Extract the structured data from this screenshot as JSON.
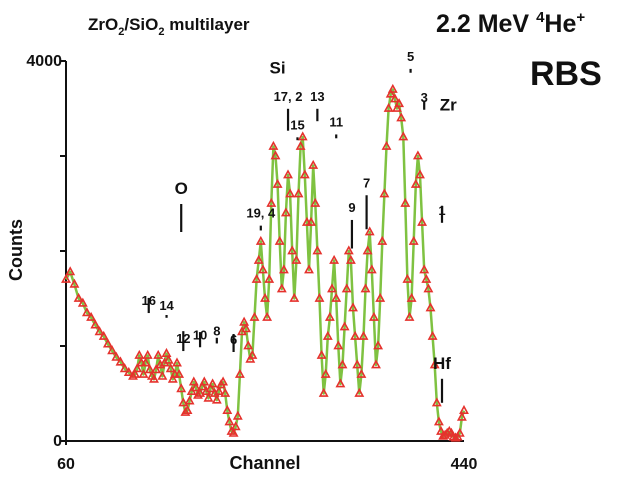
{
  "colors": {
    "marker": "#e5322d",
    "line": "#7fc241",
    "text": "#111111",
    "axis": "#111111"
  },
  "chart_data": {
    "type": "scatter",
    "title": "ZrO2/SiO2 multilayer",
    "title_parts": {
      "base1": "ZrO",
      "sub1": "2",
      "mid": "/SiO",
      "sub2": "2",
      "rest": " multilayer"
    },
    "beam_label": {
      "prefix": "2.2 MeV ",
      "sup": "4",
      "ion": "He",
      "charge": "+"
    },
    "technique": "RBS",
    "xlabel": "Channel",
    "ylabel": "Counts",
    "xlim": [
      60,
      440
    ],
    "ylim": [
      0,
      4000
    ],
    "x_ticks": [
      "60",
      "440"
    ],
    "y_ticks": [
      "0",
      "4000"
    ],
    "grid": false,
    "legend": "none",
    "element_labels": [
      {
        "text": "O",
        "x": 170,
        "y": 2600
      },
      {
        "text": "Si",
        "x": 262,
        "y": 3870
      },
      {
        "text": "Zr",
        "x": 425,
        "y": 3480
      },
      {
        "text": "Hf",
        "x": 419,
        "y": 760
      }
    ],
    "layer_markers": [
      {
        "label": "1",
        "x": 419,
        "top": 2360,
        "bottom": 2350
      },
      {
        "label": "3",
        "x": 402,
        "top": 3550,
        "bottom": 3450
      },
      {
        "label": "5",
        "x": 389,
        "top": 3980,
        "bottom": 3750
      },
      {
        "label": "7",
        "x": 347,
        "top": 2650,
        "bottom": 2030
      },
      {
        "label": "9",
        "x": 333,
        "top": 2390,
        "bottom": 1900
      },
      {
        "label": "11",
        "x": 318,
        "top": 3290,
        "bottom": 3060
      },
      {
        "label": "13",
        "x": 300,
        "top": 3560,
        "bottom": 3240
      },
      {
        "label": "15",
        "x": 281,
        "top": 3260,
        "bottom": 3040
      },
      {
        "label": "17, 2",
        "x": 272,
        "top": 3560,
        "bottom": 3140
      },
      {
        "label": "19, 4",
        "x": 246,
        "top": 2330,
        "bottom": 2090
      },
      {
        "label": "6",
        "x": 220,
        "top": 1000,
        "bottom": 1000
      },
      {
        "label": "8",
        "x": 204,
        "top": 1090,
        "bottom": 960
      },
      {
        "label": "10",
        "x": 188,
        "top": 1050,
        "bottom": 1020
      },
      {
        "label": "12",
        "x": 172,
        "top": 1010,
        "bottom": 1030
      },
      {
        "label": "14",
        "x": 156,
        "top": 1360,
        "bottom": 1200
      },
      {
        "label": "16",
        "x": 139,
        "top": 1410,
        "bottom": 1380
      }
    ],
    "series": [
      {
        "x": [
          60,
          64,
          68,
          72,
          76,
          80,
          84,
          88,
          92,
          96,
          100,
          104,
          108,
          112,
          116,
          120,
          124,
          126,
          128,
          130,
          132,
          134,
          136,
          138,
          140,
          142,
          144,
          146,
          148,
          150,
          152,
          154,
          156,
          158,
          160,
          162,
          164,
          166,
          168,
          170,
          172,
          174,
          176,
          178,
          180,
          182,
          184,
          186,
          188,
          190,
          192,
          194,
          196,
          198,
          200,
          202,
          204,
          206,
          208,
          210,
          212,
          214,
          216,
          218,
          220,
          222,
          224,
          226,
          228,
          230,
          232,
          234,
          236,
          238,
          240,
          242,
          244,
          246,
          248,
          250,
          252,
          254,
          256,
          258,
          260,
          262,
          264,
          266,
          268,
          270,
          272,
          274,
          276,
          278,
          280,
          282,
          284,
          286,
          288,
          290,
          292,
          294,
          296,
          298,
          300,
          302,
          304,
          306,
          308,
          310,
          312,
          314,
          316,
          318,
          320,
          322,
          324,
          326,
          328,
          330,
          332,
          334,
          336,
          338,
          340,
          342,
          344,
          346,
          348,
          350,
          352,
          354,
          356,
          358,
          360,
          362,
          364,
          366,
          368,
          370,
          372,
          374,
          376,
          378,
          380,
          382,
          384,
          386,
          388,
          390,
          392,
          394,
          396,
          398,
          400,
          402,
          404,
          406,
          408,
          410,
          412,
          414,
          416,
          418,
          420,
          422,
          424,
          426,
          428,
          430,
          432,
          434,
          436,
          438,
          440
        ],
        "y": [
          1700,
          1780,
          1650,
          1500,
          1450,
          1350,
          1300,
          1220,
          1150,
          1100,
          1020,
          950,
          880,
          830,
          760,
          720,
          680,
          700,
          760,
          900,
          820,
          700,
          820,
          900,
          750,
          680,
          650,
          750,
          900,
          800,
          680,
          820,
          920,
          850,
          760,
          650,
          700,
          820,
          700,
          550,
          400,
          300,
          320,
          420,
          520,
          620,
          560,
          480,
          500,
          570,
          620,
          520,
          450,
          550,
          600,
          500,
          430,
          520,
          590,
          620,
          500,
          320,
          200,
          100,
          80,
          150,
          260,
          700,
          1150,
          1250,
          1180,
          1000,
          860,
          900,
          1300,
          1700,
          1900,
          2100,
          1800,
          1500,
          1300,
          1700,
          2500,
          3100,
          3000,
          2700,
          2100,
          1600,
          1800,
          2400,
          2800,
          2600,
          2000,
          1500,
          1900,
          2600,
          3100,
          3200,
          2800,
          2300,
          1800,
          2300,
          2900,
          2500,
          2000,
          1500,
          900,
          500,
          700,
          1100,
          1300,
          1600,
          1900,
          1500,
          1000,
          600,
          800,
          1200,
          1600,
          2000,
          1900,
          1400,
          1100,
          800,
          500,
          700,
          1100,
          1600,
          2000,
          2200,
          1800,
          1300,
          800,
          1000,
          1500,
          2100,
          2600,
          3100,
          3500,
          3650,
          3700,
          3600,
          3500,
          3550,
          3400,
          3200,
          2500,
          1700,
          1300,
          1500,
          2100,
          2700,
          3000,
          2800,
          2300,
          1800,
          1700,
          1600,
          1400,
          1100,
          800,
          400,
          200,
          100,
          50,
          60,
          80,
          100,
          80,
          40,
          30,
          40,
          80,
          250,
          320
        ]
      }
    ]
  }
}
